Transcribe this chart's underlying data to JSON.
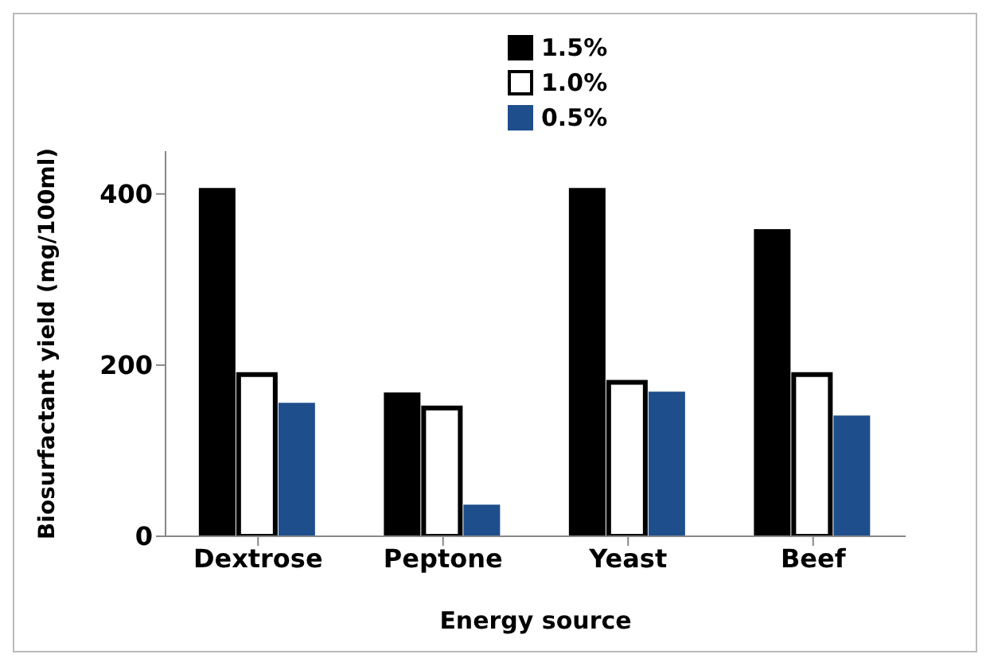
{
  "chart_data": {
    "type": "bar",
    "xlabel": "Energy source",
    "ylabel": "Biosurfactant yield  (mg/100ml)",
    "categories": [
      "Dextrose",
      "Peptone",
      "Yeast",
      "Beef"
    ],
    "series": [
      {
        "name": "1.5%",
        "color": "#000000",
        "values": [
          407,
          168,
          407,
          359
        ]
      },
      {
        "name": "1.0%",
        "color": "#ffffff",
        "values": [
          189,
          150,
          180,
          189
        ]
      },
      {
        "name": "0.5%",
        "color": "#1f4e8c",
        "values": [
          156,
          37,
          169,
          141
        ]
      }
    ],
    "ylim": [
      0,
      450
    ],
    "yticks": [
      0,
      200,
      400
    ],
    "grid": false,
    "legend": "top"
  }
}
